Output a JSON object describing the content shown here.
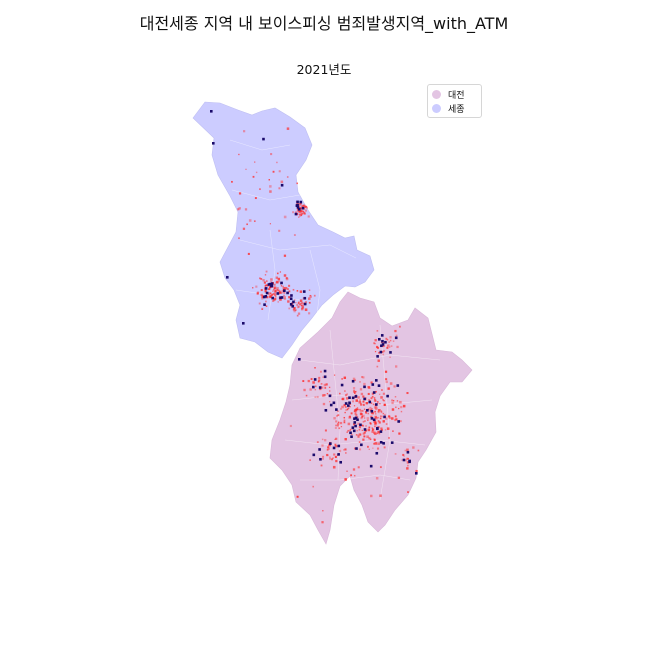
{
  "title": "대전세종 지역 내 보이스피싱 범죄발생지역_with_ATM",
  "subtitle": "2021년도",
  "legend": [
    {
      "label": "대전",
      "color": "#e3c5e3"
    },
    {
      "label": "세종",
      "color": "#ccccff"
    }
  ],
  "colors": {
    "incident": "#ff2a2a",
    "atm": "#1a0a6b",
    "boundary": "#ffffff"
  }
}
